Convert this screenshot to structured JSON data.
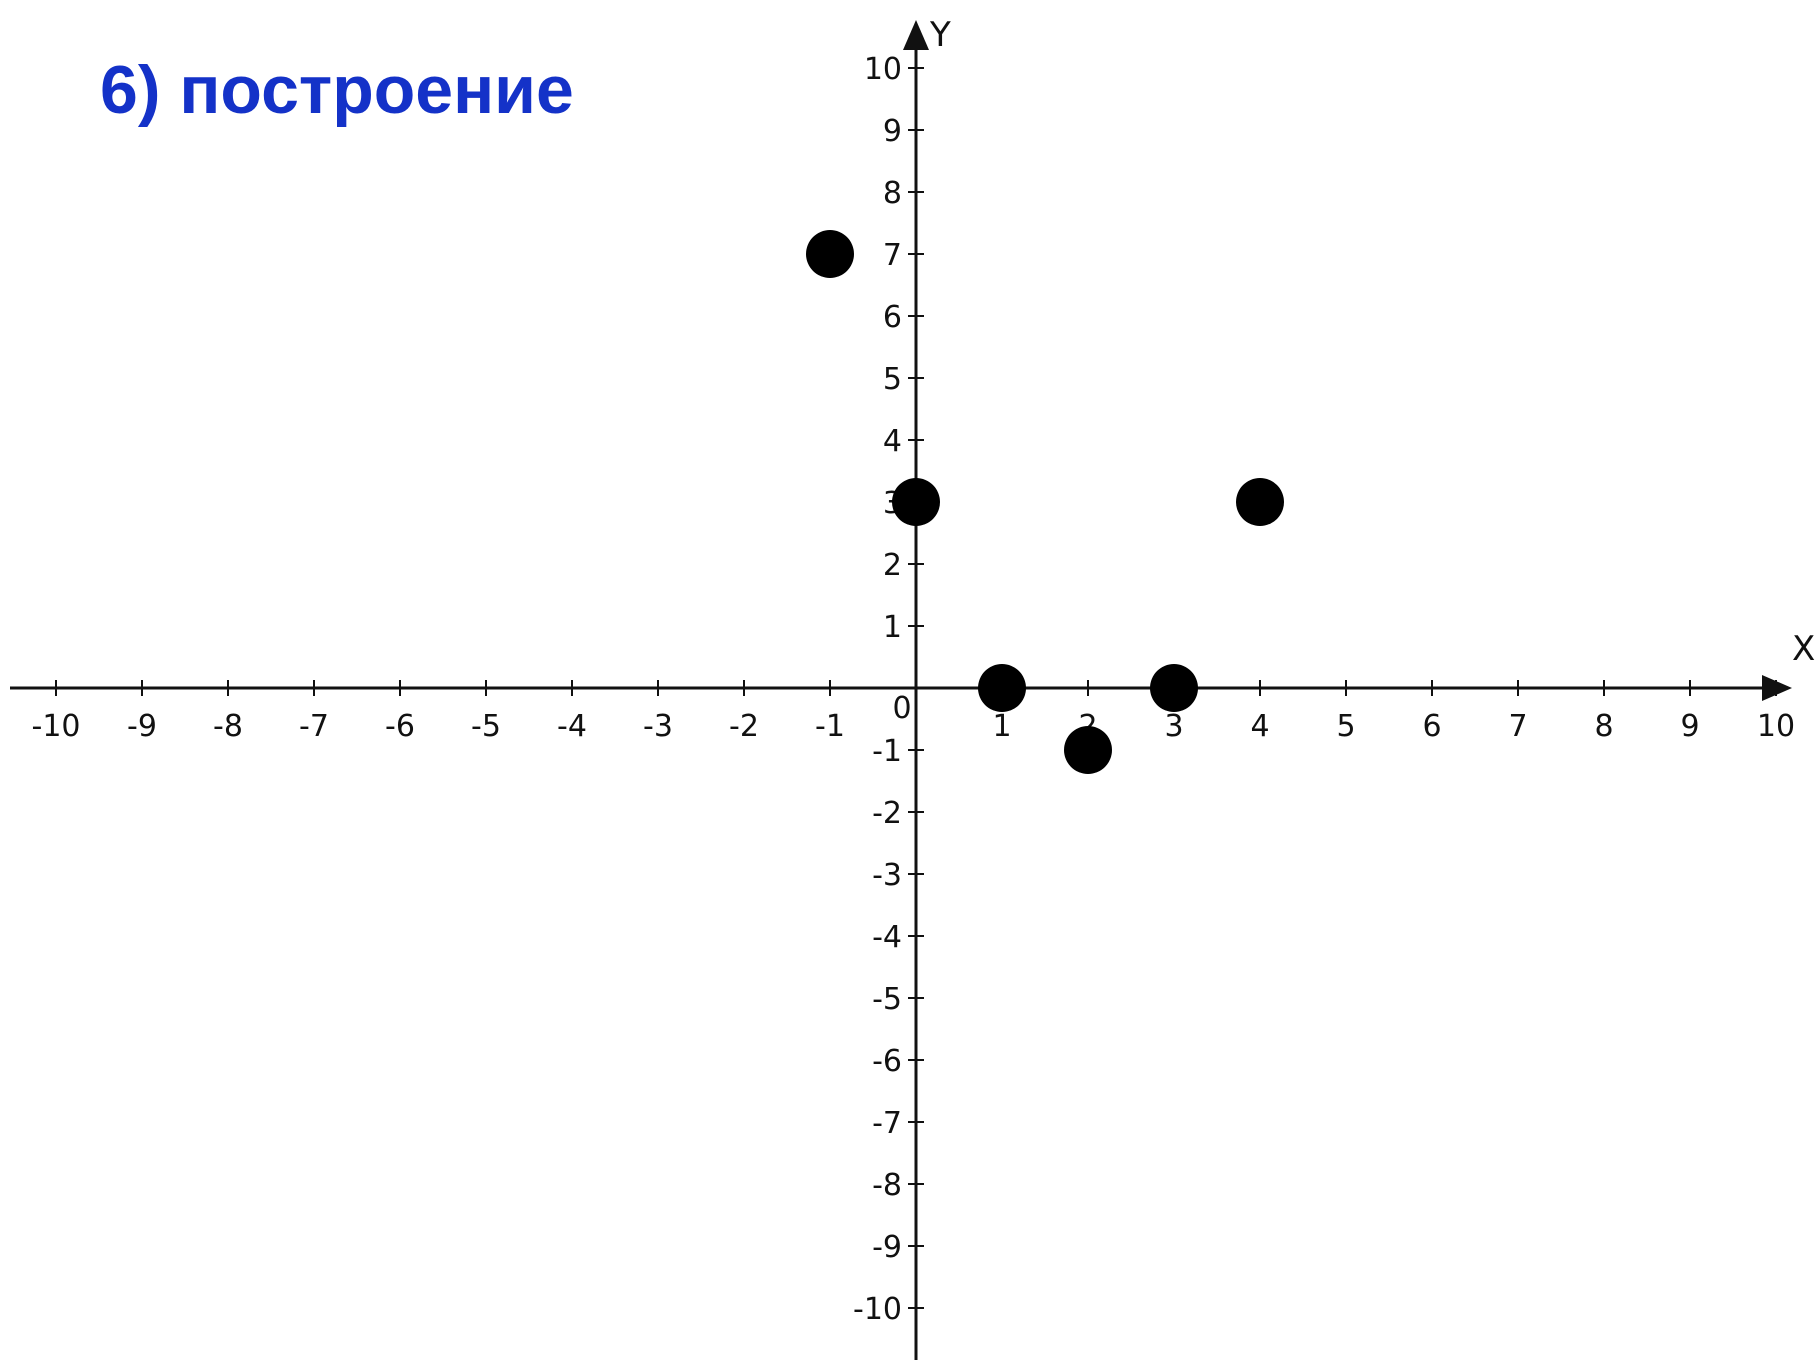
{
  "page": {
    "title": "6) построение"
  },
  "chart_data": {
    "type": "scatter",
    "title": "6) построение",
    "xlabel": "X",
    "ylabel": "Y",
    "origin_label": "0",
    "xlim": [
      -10,
      10
    ],
    "ylim": [
      -10,
      10
    ],
    "grid": false,
    "x_ticks": [
      -10,
      -9,
      -8,
      -7,
      -6,
      -5,
      -4,
      -3,
      -2,
      -1,
      1,
      2,
      3,
      4,
      5,
      6,
      7,
      8,
      9,
      10
    ],
    "y_ticks": [
      -10,
      -9,
      -8,
      -7,
      -6,
      -5,
      -4,
      -3,
      -2,
      -1,
      1,
      2,
      3,
      4,
      5,
      6,
      7,
      8,
      9,
      10
    ],
    "series": [
      {
        "points": [
          {
            "x": -1,
            "y": 7
          },
          {
            "x": 0,
            "y": 3
          },
          {
            "x": 1,
            "y": 0
          },
          {
            "x": 2,
            "y": -1
          },
          {
            "x": 3,
            "y": 0
          },
          {
            "x": 4,
            "y": 3
          }
        ],
        "color": "#000000"
      }
    ],
    "colors": {
      "title": "#1432c8",
      "axes": "#111111",
      "points": "#000000"
    }
  }
}
